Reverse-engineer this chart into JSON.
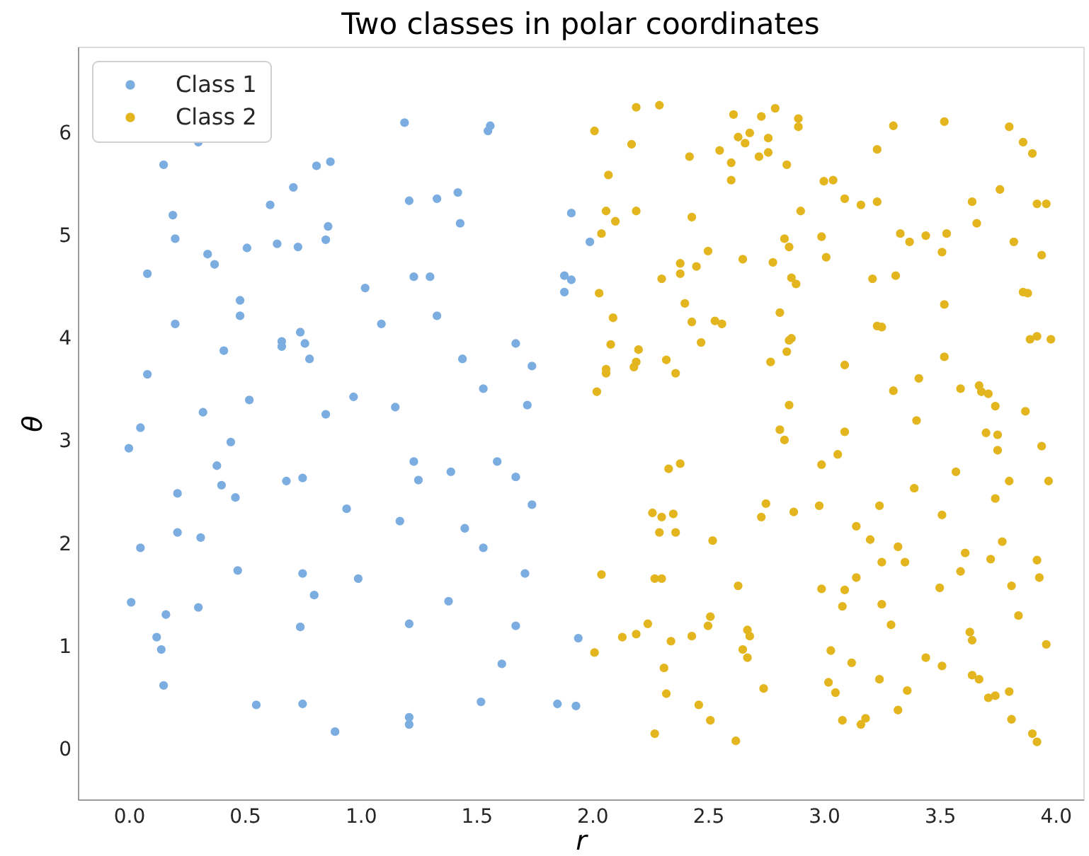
{
  "chart_data": {
    "type": "scatter",
    "title": "Two classes in polar coordinates",
    "xlabel": "r",
    "ylabel": "θ",
    "xlim": [
      -0.22,
      4.12
    ],
    "ylim": [
      -0.49,
      6.84
    ],
    "xticks": [
      {
        "value": 0,
        "label": "0.0"
      },
      0.5,
      {
        "value": 1,
        "label": "1.0"
      },
      1.5,
      {
        "value": 2,
        "label": "2.0"
      },
      2.5,
      {
        "value": 3,
        "label": "3.0"
      },
      3.5,
      {
        "value": 4,
        "label": "4.0"
      }
    ],
    "yticks": [
      0,
      1,
      2,
      3,
      4,
      5,
      6
    ],
    "legend": "top left",
    "marker": "circle",
    "series": [
      {
        "name": "Class 1",
        "color": "#7cade0",
        "x": [
          1.19,
          0.3,
          0.15,
          0.81,
          0.87,
          0.71,
          0.61,
          1.21,
          0.19,
          0.2,
          0.86,
          0.85,
          0.51,
          0.64,
          0.73,
          0.34,
          0.37,
          0.08,
          1.23,
          1.02,
          0.48,
          0.48,
          1.09,
          0.2,
          0.74,
          0.66,
          0.66,
          0.76,
          0.78,
          0.41,
          0.08,
          0.52,
          0.97,
          1.15,
          0.32,
          0.85,
          0.05,
          0.0,
          0.44,
          0.38,
          0.4,
          0.46,
          0.68,
          0.75,
          0.21,
          0.94,
          1.17,
          1.23,
          1.25,
          0.21,
          0.31,
          0.05,
          0.47,
          0.75,
          0.99,
          0.8,
          0.01,
          0.3,
          0.16,
          1.21,
          0.74,
          0.12,
          0.14,
          0.15,
          0.55,
          0.75,
          0.89,
          1.21,
          1.21,
          1.56,
          1.55,
          1.33,
          1.42,
          1.43,
          1.91,
          1.99,
          1.3,
          1.88,
          1.91,
          1.88,
          1.33,
          1.67,
          1.44,
          1.74,
          1.53,
          1.72,
          1.39,
          1.59,
          1.67,
          1.74,
          1.45,
          1.53,
          1.71,
          1.38,
          1.67,
          1.94,
          1.61,
          1.52,
          1.85,
          1.93
        ],
        "values": [
          6.1,
          5.91,
          5.69,
          5.68,
          5.72,
          5.47,
          5.3,
          5.34,
          5.2,
          4.97,
          5.09,
          4.96,
          4.88,
          4.92,
          4.89,
          4.82,
          4.72,
          4.63,
          4.6,
          4.49,
          4.37,
          4.22,
          4.14,
          4.14,
          4.06,
          3.97,
          3.92,
          3.95,
          3.8,
          3.88,
          3.65,
          3.4,
          3.43,
          3.33,
          3.28,
          3.26,
          3.13,
          2.93,
          2.99,
          2.76,
          2.57,
          2.45,
          2.61,
          2.64,
          2.49,
          2.34,
          2.22,
          2.8,
          2.62,
          2.11,
          2.06,
          1.96,
          1.74,
          1.71,
          1.66,
          1.5,
          1.43,
          1.38,
          1.31,
          1.22,
          1.19,
          1.09,
          0.97,
          0.62,
          0.43,
          0.44,
          0.17,
          0.31,
          0.24,
          6.07,
          6.02,
          5.36,
          5.42,
          5.12,
          5.22,
          4.94,
          4.6,
          4.61,
          4.57,
          4.45,
          4.22,
          3.95,
          3.8,
          3.73,
          3.51,
          3.35,
          2.7,
          2.8,
          2.65,
          2.38,
          2.15,
          1.96,
          1.71,
          1.44,
          1.2,
          1.08,
          0.83,
          0.46,
          0.44,
          0.42
        ]
      },
      {
        "name": "Class 2",
        "color": "#e3b51e",
        "x": [
          2.19,
          2.29,
          2.61,
          2.73,
          2.01,
          2.63,
          2.68,
          2.66,
          2.17,
          2.42,
          2.55,
          2.6,
          2.72,
          2.6,
          2.07,
          2.06,
          2.19,
          2.1,
          2.04,
          2.43,
          2.5,
          2.65,
          2.38,
          2.38,
          2.45,
          2.3,
          2.03,
          2.4,
          2.09,
          2.43,
          2.53,
          2.56,
          2.47,
          2.08,
          2.2,
          2.32,
          2.19,
          2.18,
          2.06,
          2.06,
          2.36,
          2.02,
          2.79,
          2.89,
          2.89,
          2.76,
          2.76,
          2.84,
          3.3,
          3.52,
          3.8,
          3.86,
          3.9,
          3.23,
          3.0,
          3.04,
          3.09,
          3.16,
          3.23,
          2.9,
          3.76,
          3.64,
          3.92,
          3.96,
          3.66,
          3.33,
          3.37,
          3.44,
          3.53,
          3.51,
          3.82,
          3.94,
          2.83,
          2.85,
          2.99,
          3.01,
          2.78,
          2.86,
          2.88,
          3.21,
          3.31,
          3.52,
          3.86,
          3.88,
          2.81,
          3.23,
          3.25,
          2.86,
          2.85,
          2.84,
          2.77,
          3.09,
          3.52,
          3.89,
          3.92,
          3.98,
          3.41,
          3.3,
          3.59,
          3.67,
          3.68,
          3.71,
          3.74,
          3.87,
          2.85,
          3.4,
          2.81,
          2.83,
          3.09,
          3.06,
          2.99,
          3.7,
          3.75,
          3.75,
          3.94,
          3.57,
          3.39,
          3.8,
          3.97,
          3.74,
          2.75,
          2.73,
          2.87,
          2.98,
          3.24,
          3.51,
          3.14,
          3.2,
          3.32,
          3.25,
          3.35,
          3.61,
          3.59,
          3.72,
          3.77,
          3.92,
          3.93,
          3.14,
          3.09,
          2.99,
          3.08,
          2.63,
          3.5,
          3.81,
          3.84,
          3.25,
          3.29,
          3.63,
          3.64,
          3.96,
          2.67,
          2.68,
          2.65,
          2.67,
          3.03,
          3.12,
          3.44,
          3.51,
          2.74,
          3.02,
          3.05,
          3.24,
          3.36,
          3.32,
          3.64,
          3.67,
          3.71,
          3.74,
          3.8,
          3.81,
          3.08,
          3.16,
          3.18,
          3.9,
          3.92,
          2.62,
          2.33,
          2.38,
          2.26,
          2.3,
          2.35,
          2.29,
          2.36,
          2.52,
          2.04,
          2.27,
          2.3,
          2.51,
          2.5,
          2.24,
          2.19,
          2.13,
          2.01,
          2.34,
          2.43,
          2.31,
          2.32,
          2.46,
          2.51,
          2.27
        ],
        "values": [
          6.25,
          6.27,
          6.18,
          6.16,
          6.02,
          5.96,
          6.0,
          5.9,
          5.89,
          5.77,
          5.83,
          5.71,
          5.77,
          5.54,
          5.59,
          5.24,
          5.24,
          5.14,
          5.02,
          5.18,
          4.85,
          4.77,
          4.73,
          4.63,
          4.7,
          4.58,
          4.44,
          4.34,
          4.2,
          4.16,
          4.17,
          4.14,
          3.96,
          3.94,
          3.89,
          3.79,
          3.77,
          3.72,
          3.7,
          3.66,
          3.66,
          3.48,
          6.24,
          6.14,
          6.06,
          5.95,
          5.81,
          5.69,
          6.07,
          6.11,
          6.06,
          5.91,
          5.8,
          5.84,
          5.53,
          5.54,
          5.36,
          5.3,
          5.33,
          5.24,
          5.45,
          5.33,
          5.31,
          5.31,
          5.12,
          5.02,
          4.94,
          5.0,
          5.02,
          4.84,
          4.94,
          4.81,
          4.97,
          4.89,
          4.99,
          4.79,
          4.74,
          4.59,
          4.53,
          4.58,
          4.61,
          4.33,
          4.45,
          4.44,
          4.25,
          4.12,
          4.11,
          4.0,
          3.98,
          3.87,
          3.77,
          3.74,
          3.82,
          3.99,
          4.02,
          3.99,
          3.61,
          3.49,
          3.51,
          3.54,
          3.48,
          3.46,
          3.34,
          3.29,
          3.35,
          3.2,
          3.11,
          3.01,
          3.09,
          2.87,
          2.77,
          3.08,
          3.06,
          2.91,
          2.95,
          2.7,
          2.54,
          2.61,
          2.61,
          2.44,
          2.39,
          2.26,
          2.31,
          2.37,
          2.37,
          2.28,
          2.17,
          2.04,
          1.97,
          1.82,
          1.82,
          1.91,
          1.73,
          1.85,
          2.02,
          1.84,
          1.67,
          1.67,
          1.55,
          1.56,
          1.39,
          1.59,
          1.57,
          1.59,
          1.3,
          1.41,
          1.21,
          1.14,
          1.06,
          1.02,
          1.16,
          1.1,
          0.97,
          0.89,
          0.96,
          0.84,
          0.89,
          0.81,
          0.59,
          0.65,
          0.55,
          0.68,
          0.57,
          0.38,
          0.72,
          0.68,
          0.5,
          0.52,
          0.56,
          0.29,
          0.28,
          0.24,
          0.3,
          0.15,
          0.07,
          0.08,
          2.73,
          2.78,
          2.3,
          2.26,
          2.29,
          2.11,
          2.11,
          2.03,
          1.7,
          1.66,
          1.66,
          1.29,
          1.2,
          1.22,
          1.12,
          1.09,
          0.94,
          1.05,
          1.1,
          0.79,
          0.54,
          0.43,
          0.28,
          0.15
        ]
      }
    ]
  }
}
